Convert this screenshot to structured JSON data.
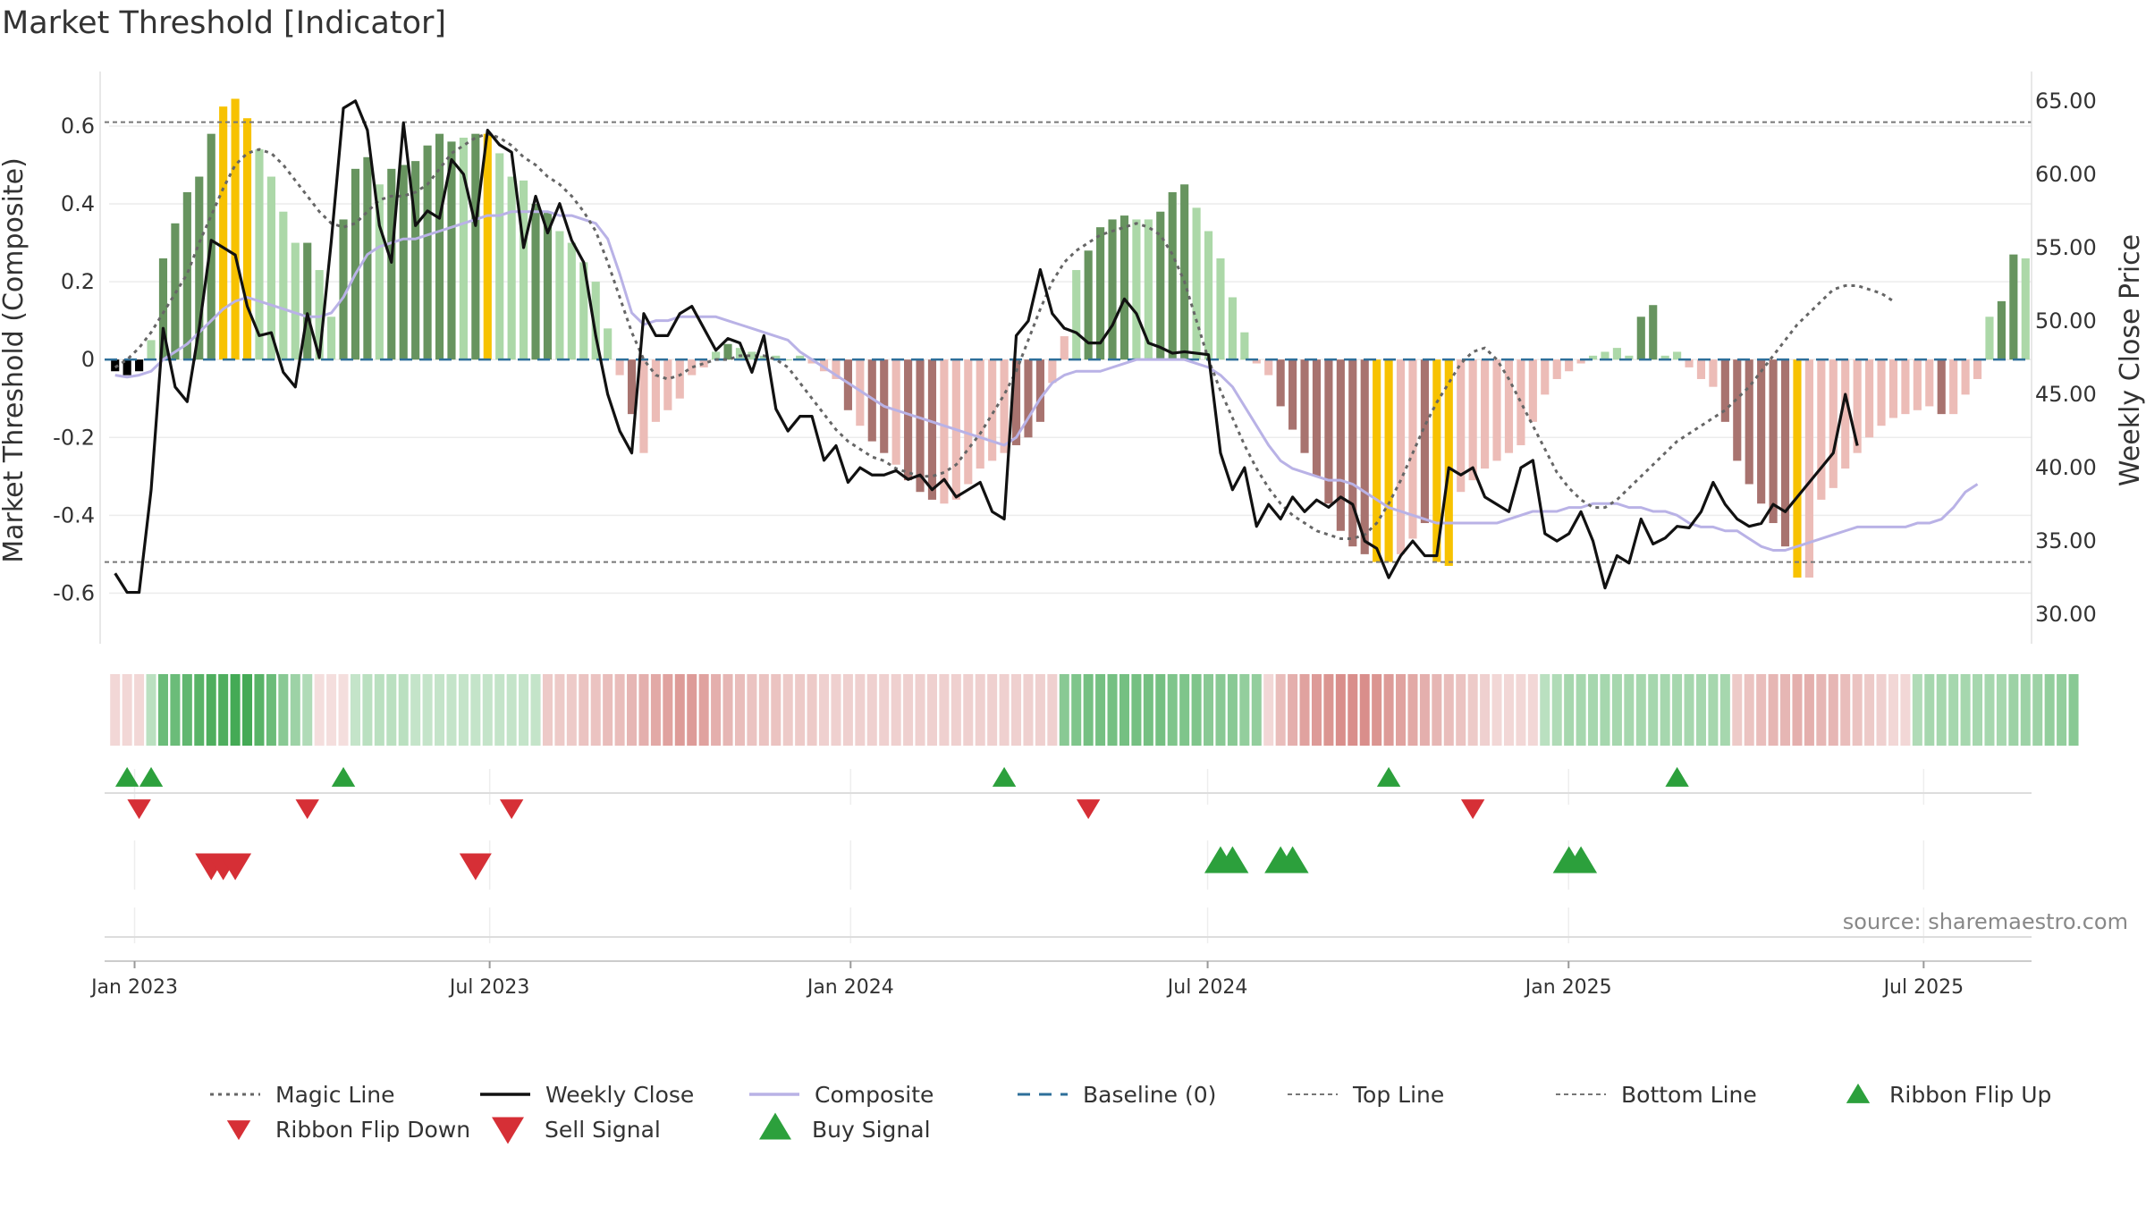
{
  "title": "Market Threshold [Indicator]",
  "colors": {
    "bar_dark_green": "#67945f",
    "bar_light_green": "#acd8a8",
    "bar_dark_red": "#a8736f",
    "bar_light_red": "#ecbcb7",
    "bar_gold": "#f7c201",
    "weekly_close": "#111111",
    "composite": "#b9b2e6",
    "magic_line": "#666666",
    "baseline": "#2e6f9a",
    "threshold_line": "#777777",
    "ribbon_green": "#3aa54c",
    "ribbon_red": "#d27a76",
    "marker_green": "#2ca03c",
    "marker_red": "#d62f36",
    "source_text": "#888888"
  },
  "source": "source: sharemaestro.com",
  "chart_data": {
    "type": "bar",
    "title": "Market Threshold [Indicator]",
    "ylabel_left": "Market Threshold (Composite)",
    "ylabel_right": "Weekly Close Price",
    "ylim_left": [
      -0.73,
      0.74
    ],
    "ylim_right": [
      28.0,
      67.0
    ],
    "yticks_left": [
      "0.6",
      "0.4",
      "0.2",
      "0",
      "-0.2",
      "-0.4",
      "-0.6"
    ],
    "yticks_right": [
      "65.00",
      "60.00",
      "55.00",
      "50.00",
      "45.00",
      "40.00",
      "35.00",
      "30.00"
    ],
    "xtick_labels": [
      "Jan 2023",
      "Jul 2023",
      "Jan 2024",
      "Jul 2024",
      "Jan 2025",
      "Jul 2025"
    ],
    "x_start": "2022-12-19",
    "x_end": "2025-08-25",
    "top_line": 0.61,
    "bottom_line": -0.52,
    "baseline": 0,
    "bars": {
      "values": [
        -0.03,
        -0.04,
        -0.03,
        0.05,
        0.26,
        0.35,
        0.43,
        0.47,
        0.58,
        0.65,
        0.67,
        0.62,
        0.54,
        0.47,
        0.38,
        0.3,
        0.3,
        0.23,
        0.11,
        0.36,
        0.49,
        0.52,
        0.45,
        0.49,
        0.5,
        0.51,
        0.55,
        0.58,
        0.56,
        0.57,
        0.58,
        0.58,
        0.53,
        0.47,
        0.46,
        0.4,
        0.38,
        0.33,
        0.3,
        0.25,
        0.2,
        0.08,
        -0.04,
        -0.14,
        -0.24,
        -0.16,
        -0.13,
        -0.1,
        -0.04,
        -0.02,
        0.02,
        0.04,
        0.03,
        0.02,
        0.01,
        0.01,
        0.0,
        0.01,
        -0.01,
        -0.03,
        -0.05,
        -0.13,
        -0.17,
        -0.21,
        -0.24,
        -0.27,
        -0.31,
        -0.34,
        -0.36,
        -0.37,
        -0.36,
        -0.32,
        -0.28,
        -0.26,
        -0.24,
        -0.22,
        -0.2,
        -0.16,
        -0.06,
        0.06,
        0.23,
        0.28,
        0.34,
        0.36,
        0.37,
        0.36,
        0.36,
        0.38,
        0.43,
        0.45,
        0.39,
        0.33,
        0.26,
        0.16,
        0.07,
        -0.01,
        -0.04,
        -0.12,
        -0.18,
        -0.24,
        -0.3,
        -0.37,
        -0.44,
        -0.48,
        -0.5,
        -0.52,
        -0.52,
        -0.5,
        -0.46,
        -0.42,
        -0.52,
        -0.53,
        -0.34,
        -0.31,
        -0.28,
        -0.26,
        -0.24,
        -0.22,
        -0.16,
        -0.09,
        -0.05,
        -0.03,
        -0.01,
        0.01,
        0.02,
        0.03,
        0.01,
        0.11,
        0.14,
        0.01,
        0.02,
        -0.02,
        -0.05,
        -0.07,
        -0.16,
        -0.26,
        -0.32,
        -0.37,
        -0.42,
        -0.48,
        -0.56,
        -0.56,
        -0.36,
        -0.33,
        -0.28,
        -0.24,
        -0.2,
        -0.17,
        -0.15,
        -0.14,
        -0.13,
        -0.12,
        -0.14,
        -0.14,
        -0.09,
        -0.05,
        0.11,
        0.15,
        0.27,
        0.26
      ],
      "categories": [
        "dl",
        "dl",
        "dl",
        "ll",
        "dg",
        "dg",
        "dg",
        "dg",
        "dg",
        "go",
        "go",
        "go",
        "lg",
        "lg",
        "lg",
        "lg",
        "dg",
        "lg",
        "lg",
        "dg",
        "dg",
        "dg",
        "lg",
        "dg",
        "dg",
        "dg",
        "dg",
        "dg",
        "dg",
        "lg",
        "dg",
        "go",
        "lg",
        "lg",
        "lg",
        "dg",
        "dg",
        "lg",
        "lg",
        "lg",
        "lg",
        "lg",
        "ll",
        "dr",
        "lr",
        "lr",
        "lr",
        "lr",
        "lr",
        "ll",
        "lg",
        "dg",
        "lg",
        "lg",
        "lg",
        "lg",
        "ll",
        "ll",
        "ll",
        "ll",
        "lr",
        "dr",
        "lr",
        "dr",
        "dr",
        "lr",
        "dr",
        "dr",
        "dr",
        "lr",
        "lr",
        "lr",
        "lr",
        "lr",
        "lr",
        "dr",
        "dr",
        "dr",
        "lr",
        "lr",
        "lg",
        "dg",
        "dg",
        "dg",
        "dg",
        "lg",
        "lg",
        "dg",
        "dg",
        "dg",
        "lg",
        "lg",
        "lg",
        "lg",
        "lg",
        "ll",
        "lr",
        "dr",
        "dr",
        "dr",
        "dr",
        "dr",
        "dr",
        "dr",
        "dr",
        "go",
        "go",
        "lr",
        "lr",
        "dr",
        "go",
        "go",
        "lr",
        "lr",
        "lr",
        "lr",
        "lr",
        "lr",
        "lr",
        "lr",
        "lr",
        "ll",
        "ll",
        "ll",
        "lg",
        "lg",
        "ll",
        "dg",
        "dg",
        "lg",
        "ll",
        "lr",
        "lr",
        "lr",
        "dr",
        "dr",
        "dr",
        "dr",
        "dr",
        "dr",
        "go",
        "lr",
        "lr",
        "lr",
        "lr",
        "lr",
        "lr",
        "lr",
        "lr",
        "lr",
        "lr",
        "lr",
        "dr",
        "lr",
        "lr",
        "lr",
        "lg",
        "dg",
        "dg",
        "lg"
      ]
    },
    "series": [
      {
        "name": "Weekly Close",
        "axis": "right",
        "values": [
          32.8,
          31.5,
          31.5,
          38.5,
          49.5,
          45.5,
          44.5,
          49.5,
          55.5,
          55.0,
          54.5,
          51.0,
          49.0,
          49.2,
          46.5,
          45.5,
          50.5,
          47.5,
          55.5,
          64.5,
          65.0,
          63.0,
          56.5,
          54.0,
          63.5,
          56.5,
          57.5,
          57.0,
          61.0,
          60.0,
          56.5,
          63.0,
          62.0,
          61.5,
          55.0,
          58.5,
          56.0,
          58.0,
          55.5,
          54.0,
          49.0,
          45.0,
          42.5,
          41.0,
          50.5,
          49.0,
          49.0,
          50.5,
          51.0,
          49.5,
          48.0,
          48.8,
          48.5,
          46.5,
          49.0,
          44.0,
          42.5,
          43.5,
          43.5,
          40.5,
          41.5,
          39.0,
          40.0,
          39.5,
          39.5,
          39.8,
          39.2,
          39.5,
          38.5,
          39.2,
          38.0,
          38.5,
          39.0,
          37.0,
          36.5,
          49.0,
          50.0,
          53.5,
          50.5,
          49.5,
          49.2,
          48.5,
          48.5,
          49.7,
          51.5,
          50.5,
          48.5,
          48.2,
          47.8,
          47.9,
          47.8,
          47.7,
          41.0,
          38.5,
          40.0,
          36.0,
          37.5,
          36.5,
          38.0,
          37.0,
          37.8,
          37.3,
          38.0,
          37.5,
          35.0,
          34.5,
          32.5,
          34.0,
          35.0,
          34.0,
          34.0,
          40.0,
          39.5,
          40.0,
          38.0,
          37.5,
          37.0,
          40.0,
          40.5,
          35.5,
          35.0,
          35.5,
          37.0,
          35.0,
          31.8,
          34.0,
          33.5,
          36.5,
          34.8,
          35.2,
          36.0,
          35.9,
          37.0,
          39.0,
          37.5,
          36.5,
          36.0,
          36.2,
          37.5,
          37.0,
          38.0,
          39.0,
          40.0,
          41.0,
          45.0,
          41.5
        ],
        "color": "#111111"
      },
      {
        "name": "Composite",
        "axis": "left",
        "values": [
          -0.04,
          -0.045,
          -0.04,
          -0.03,
          0.0,
          0.02,
          0.04,
          0.07,
          0.1,
          0.13,
          0.15,
          0.16,
          0.15,
          0.14,
          0.13,
          0.12,
          0.11,
          0.11,
          0.12,
          0.16,
          0.22,
          0.27,
          0.29,
          0.3,
          0.31,
          0.31,
          0.32,
          0.33,
          0.34,
          0.35,
          0.36,
          0.37,
          0.37,
          0.38,
          0.38,
          0.38,
          0.38,
          0.37,
          0.37,
          0.36,
          0.35,
          0.31,
          0.22,
          0.12,
          0.09,
          0.1,
          0.1,
          0.11,
          0.11,
          0.11,
          0.11,
          0.1,
          0.09,
          0.08,
          0.07,
          0.06,
          0.05,
          0.02,
          0.0,
          -0.02,
          -0.04,
          -0.06,
          -0.08,
          -0.1,
          -0.12,
          -0.13,
          -0.14,
          -0.15,
          -0.16,
          -0.17,
          -0.18,
          -0.19,
          -0.2,
          -0.21,
          -0.22,
          -0.2,
          -0.15,
          -0.1,
          -0.06,
          -0.04,
          -0.03,
          -0.03,
          -0.03,
          -0.02,
          -0.01,
          0.0,
          0.0,
          0.0,
          0.0,
          0.0,
          -0.01,
          -0.02,
          -0.04,
          -0.07,
          -0.12,
          -0.17,
          -0.22,
          -0.26,
          -0.28,
          -0.29,
          -0.3,
          -0.31,
          -0.31,
          -0.32,
          -0.34,
          -0.36,
          -0.38,
          -0.39,
          -0.4,
          -0.41,
          -0.42,
          -0.42,
          -0.42,
          -0.42,
          -0.42,
          -0.42,
          -0.41,
          -0.4,
          -0.39,
          -0.39,
          -0.39,
          -0.38,
          -0.38,
          -0.37,
          -0.37,
          -0.37,
          -0.38,
          -0.38,
          -0.39,
          -0.39,
          -0.4,
          -0.42,
          -0.43,
          -0.43,
          -0.44,
          -0.44,
          -0.46,
          -0.48,
          -0.49,
          -0.49,
          -0.48,
          -0.47,
          -0.46,
          -0.45,
          -0.44,
          -0.43,
          -0.43,
          -0.43,
          -0.43,
          -0.43,
          -0.42,
          -0.42,
          -0.41,
          -0.38,
          -0.34,
          -0.32
        ],
        "color": "#b9b2e6"
      },
      {
        "name": "Magic Line",
        "axis": "left",
        "values": [
          -0.02,
          0.0,
          0.03,
          0.07,
          0.12,
          0.17,
          0.22,
          0.3,
          0.37,
          0.44,
          0.5,
          0.53,
          0.54,
          0.53,
          0.5,
          0.46,
          0.42,
          0.38,
          0.35,
          0.34,
          0.35,
          0.38,
          0.41,
          0.42,
          0.42,
          0.43,
          0.45,
          0.49,
          0.53,
          0.55,
          0.57,
          0.58,
          0.57,
          0.55,
          0.52,
          0.5,
          0.47,
          0.45,
          0.42,
          0.38,
          0.33,
          0.25,
          0.16,
          0.07,
          0.0,
          -0.04,
          -0.05,
          -0.04,
          -0.02,
          -0.01,
          0.0,
          0.0,
          0.01,
          0.01,
          0.01,
          0.0,
          -0.02,
          -0.06,
          -0.1,
          -0.14,
          -0.18,
          -0.21,
          -0.23,
          -0.25,
          -0.26,
          -0.28,
          -0.29,
          -0.3,
          -0.3,
          -0.29,
          -0.27,
          -0.23,
          -0.19,
          -0.14,
          -0.09,
          -0.03,
          0.05,
          0.13,
          0.2,
          0.25,
          0.28,
          0.3,
          0.32,
          0.33,
          0.34,
          0.35,
          0.34,
          0.32,
          0.27,
          0.2,
          0.1,
          0.0,
          -0.08,
          -0.15,
          -0.22,
          -0.28,
          -0.33,
          -0.37,
          -0.4,
          -0.42,
          -0.44,
          -0.45,
          -0.46,
          -0.46,
          -0.45,
          -0.42,
          -0.37,
          -0.31,
          -0.24,
          -0.17,
          -0.11,
          -0.06,
          -0.01,
          0.02,
          0.03,
          0.0,
          -0.05,
          -0.11,
          -0.17,
          -0.23,
          -0.29,
          -0.33,
          -0.36,
          -0.38,
          -0.38,
          -0.36,
          -0.33,
          -0.3,
          -0.27,
          -0.24,
          -0.21,
          -0.19,
          -0.17,
          -0.15,
          -0.13,
          -0.1,
          -0.07,
          -0.03,
          0.01,
          0.05,
          0.09,
          0.12,
          0.15,
          0.18,
          0.19,
          0.19,
          0.18,
          0.17,
          0.15
        ],
        "color": "#666666"
      }
    ],
    "ribbon_levels": [
      -0.3,
      -0.3,
      -0.3,
      0.35,
      0.75,
      0.75,
      0.8,
      0.85,
      0.9,
      0.9,
      0.95,
      0.95,
      0.85,
      0.75,
      0.6,
      0.5,
      0.4,
      -0.25,
      -0.25,
      -0.25,
      0.3,
      0.35,
      0.35,
      0.35,
      0.35,
      0.3,
      0.3,
      0.3,
      0.3,
      0.3,
      0.3,
      0.3,
      0.3,
      0.3,
      0.3,
      0.3,
      -0.4,
      -0.4,
      -0.4,
      -0.45,
      -0.45,
      -0.5,
      -0.5,
      -0.55,
      -0.6,
      -0.65,
      -0.7,
      -0.75,
      -0.75,
      -0.7,
      -0.6,
      -0.55,
      -0.5,
      -0.45,
      -0.45,
      -0.45,
      -0.4,
      -0.4,
      -0.4,
      -0.35,
      -0.35,
      -0.35,
      -0.35,
      -0.35,
      -0.35,
      -0.35,
      -0.35,
      -0.35,
      -0.35,
      -0.35,
      -0.35,
      -0.35,
      -0.35,
      -0.35,
      -0.35,
      -0.35,
      -0.35,
      -0.35,
      -0.35,
      0.6,
      0.65,
      0.7,
      0.7,
      0.7,
      0.7,
      0.7,
      0.7,
      0.7,
      0.65,
      0.65,
      0.65,
      0.6,
      0.6,
      0.6,
      0.55,
      0.55,
      -0.3,
      -0.5,
      -0.6,
      -0.7,
      -0.75,
      -0.8,
      -0.85,
      -0.85,
      -0.85,
      -0.8,
      -0.75,
      -0.7,
      -0.65,
      -0.6,
      -0.55,
      -0.5,
      -0.45,
      -0.4,
      -0.35,
      -0.3,
      -0.3,
      -0.3,
      -0.3,
      0.35,
      0.4,
      0.45,
      0.45,
      0.45,
      0.45,
      0.45,
      0.45,
      0.45,
      0.45,
      0.45,
      0.45,
      0.45,
      0.45,
      0.45,
      0.45,
      -0.4,
      -0.45,
      -0.5,
      -0.55,
      -0.55,
      -0.6,
      -0.6,
      -0.55,
      -0.55,
      -0.5,
      -0.45,
      -0.4,
      -0.35,
      -0.3,
      -0.3,
      0.4,
      0.45,
      0.45,
      0.45,
      0.45,
      0.45,
      0.45,
      0.45,
      0.5,
      0.5,
      0.5,
      0.55,
      0.55,
      0.6
    ],
    "markers": {
      "ribbon_flip_up": [
        1,
        3,
        19,
        74,
        106,
        130
      ],
      "ribbon_flip_down": [
        2,
        16,
        33,
        81,
        113
      ],
      "sell_signal": [
        8,
        9,
        10,
        30
      ],
      "buy_signal": [
        92,
        93,
        97,
        98,
        121,
        122
      ]
    },
    "legend": [
      {
        "label": "Magic Line",
        "symbol": "dotted"
      },
      {
        "label": "Weekly Close",
        "symbol": "solid"
      },
      {
        "label": "Composite",
        "symbol": "solid-lavender"
      },
      {
        "label": "Baseline (0)",
        "symbol": "dashed"
      },
      {
        "label": "Top Line",
        "symbol": "fine-dashed"
      },
      {
        "label": "Bottom Line",
        "symbol": "fine-dashed"
      },
      {
        "label": "Ribbon Flip Up",
        "symbol": "triangle-up-green"
      },
      {
        "label": "Ribbon Flip Down",
        "symbol": "triangle-down-red"
      },
      {
        "label": "Sell Signal",
        "symbol": "big-triangle-down-red"
      },
      {
        "label": "Buy Signal",
        "symbol": "big-triangle-up-green"
      }
    ],
    "grid": true
  }
}
